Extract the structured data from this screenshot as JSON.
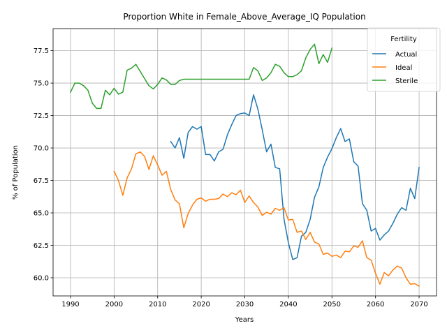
{
  "chart_data": {
    "type": "line",
    "title": "Proportion White in Female_Above_Average_IQ Population",
    "xlabel": "Years",
    "ylabel": "% of Population",
    "xlim": [
      1986,
      2074
    ],
    "ylim": [
      58.6,
      79.2
    ],
    "x_ticks": [
      1990,
      2000,
      2010,
      2020,
      2030,
      2040,
      2050,
      2060,
      2070
    ],
    "y_ticks": [
      60.0,
      62.5,
      65.0,
      67.5,
      70.0,
      72.5,
      75.0,
      77.5
    ],
    "x_tick_labels": [
      "1990",
      "2000",
      "2010",
      "2020",
      "2030",
      "2040",
      "2050",
      "2060",
      "2070"
    ],
    "y_tick_labels": [
      "60.0",
      "62.5",
      "65.0",
      "67.5",
      "70.0",
      "72.5",
      "75.0",
      "77.5"
    ],
    "grid": true,
    "legend": {
      "title": "Fertility",
      "placement": "top-right"
    },
    "series": [
      {
        "name": "Actual",
        "color": "#1f77b4",
        "x": [
          2013,
          2014,
          2015,
          2016,
          2017,
          2018,
          2019,
          2020,
          2021,
          2022,
          2023,
          2024,
          2025,
          2026,
          2027,
          2028,
          2029,
          2030,
          2031,
          2032,
          2033,
          2034,
          2035,
          2036,
          2037,
          2038,
          2039,
          2040,
          2041,
          2042,
          2043,
          2044,
          2045,
          2046,
          2047,
          2048,
          2049,
          2050,
          2051,
          2052,
          2053,
          2054,
          2055,
          2056,
          2057,
          2058,
          2059,
          2060,
          2061,
          2062,
          2063,
          2064,
          2065,
          2066,
          2067,
          2068,
          2069,
          2070
        ],
        "y": [
          70.5,
          70.0,
          70.8,
          69.2,
          71.2,
          71.65,
          71.45,
          71.65,
          69.5,
          69.5,
          69.0,
          69.7,
          69.9,
          71.0,
          71.8,
          72.5,
          72.65,
          72.7,
          72.5,
          74.1,
          73.0,
          71.4,
          69.7,
          70.3,
          68.5,
          68.4,
          64.5,
          62.7,
          61.4,
          61.55,
          63.2,
          63.5,
          64.5,
          66.2,
          67.0,
          68.5,
          69.3,
          69.95,
          70.8,
          71.5,
          70.5,
          70.7,
          68.95,
          68.6,
          65.7,
          65.2,
          63.6,
          63.8,
          62.9,
          63.3,
          63.6,
          64.2,
          64.9,
          65.4,
          65.2,
          66.9,
          66.1,
          68.5
        ]
      },
      {
        "name": "Ideal",
        "color": "#ff7f0e",
        "x": [
          2000,
          2001,
          2002,
          2003,
          2004,
          2005,
          2006,
          2007,
          2008,
          2009,
          2010,
          2011,
          2012,
          2013,
          2014,
          2015,
          2016,
          2017,
          2018,
          2019,
          2020,
          2021,
          2022,
          2023,
          2024,
          2025,
          2026,
          2027,
          2028,
          2029,
          2030,
          2031,
          2032,
          2033,
          2034,
          2035,
          2036,
          2037,
          2038,
          2039,
          2040,
          2041,
          2042,
          2043,
          2044,
          2045,
          2046,
          2047,
          2048,
          2049,
          2050,
          2051,
          2052,
          2053,
          2054,
          2055,
          2056,
          2057,
          2058,
          2059,
          2060,
          2061,
          2062,
          2063,
          2064,
          2065,
          2066,
          2067,
          2068,
          2069,
          2070
        ],
        "y": [
          68.2,
          67.5,
          66.35,
          67.7,
          68.4,
          69.55,
          69.7,
          69.35,
          68.35,
          69.4,
          68.7,
          67.9,
          68.2,
          66.8,
          66.0,
          65.7,
          63.85,
          64.95,
          65.6,
          66.05,
          66.15,
          65.9,
          66.05,
          66.05,
          66.1,
          66.45,
          66.25,
          66.55,
          66.4,
          66.75,
          65.8,
          66.3,
          65.8,
          65.45,
          64.8,
          65.05,
          64.9,
          65.35,
          65.2,
          65.4,
          64.45,
          64.5,
          63.5,
          63.6,
          62.95,
          63.5,
          62.75,
          62.6,
          61.8,
          61.9,
          61.65,
          61.75,
          61.55,
          62.05,
          62.0,
          62.45,
          62.35,
          62.85,
          61.55,
          61.35,
          60.35,
          59.5,
          60.4,
          60.15,
          60.6,
          60.9,
          60.75,
          60.0,
          59.5,
          59.55,
          59.35
        ]
      },
      {
        "name": "Sterile",
        "color": "#2ca02c",
        "x": [
          1990,
          1991,
          1992,
          1993,
          1994,
          1995,
          1996,
          1997,
          1998,
          1999,
          2000,
          2001,
          2002,
          2003,
          2004,
          2005,
          2006,
          2007,
          2008,
          2009,
          2010,
          2011,
          2012,
          2013,
          2014,
          2015,
          2016,
          2017,
          2018,
          2019,
          2020,
          2021,
          2022,
          2023,
          2024,
          2025,
          2026,
          2027,
          2028,
          2029,
          2030,
          2031,
          2032,
          2033,
          2034,
          2035,
          2036,
          2037,
          2038,
          2039,
          2040,
          2041,
          2042,
          2043,
          2044,
          2045,
          2046,
          2047,
          2048,
          2049,
          2050
        ],
        "y": [
          74.3,
          75.0,
          75.0,
          74.8,
          74.45,
          73.45,
          73.05,
          73.05,
          74.45,
          74.1,
          74.6,
          74.15,
          74.3,
          76.0,
          76.15,
          76.45,
          75.9,
          75.35,
          74.8,
          74.55,
          74.9,
          75.4,
          75.25,
          74.9,
          74.9,
          75.2,
          75.3,
          75.3,
          75.3,
          75.3,
          75.3,
          75.3,
          75.3,
          75.3,
          75.3,
          75.3,
          75.3,
          75.3,
          75.3,
          75.3,
          75.3,
          75.3,
          76.2,
          75.95,
          75.2,
          75.4,
          75.8,
          76.45,
          76.3,
          75.8,
          75.5,
          75.5,
          75.65,
          75.95,
          76.95,
          77.6,
          78.0,
          76.5,
          77.2,
          76.6,
          77.7
        ]
      }
    ]
  }
}
